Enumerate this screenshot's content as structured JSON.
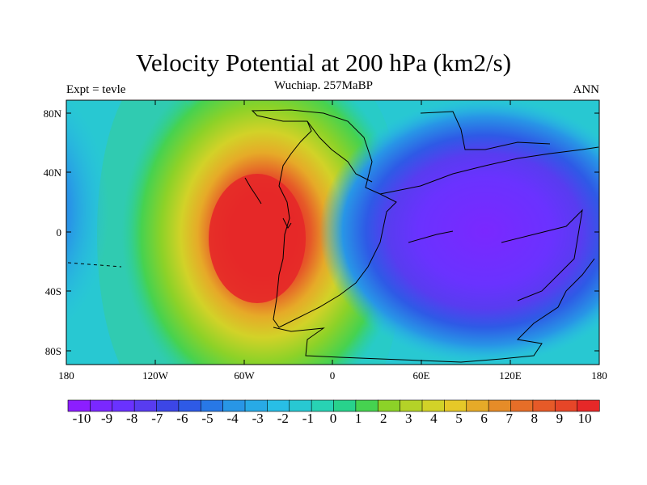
{
  "title": "Velocity Potential at 200 hPa (km2/s)",
  "subtitle": "Wuchiap. 257MaBP",
  "left_label": "Expt = tevle",
  "right_label": "ANN",
  "y_ticks": [
    "80N",
    "40N",
    "0",
    "40S",
    "80S"
  ],
  "x_ticks": [
    "180",
    "120W",
    "60W",
    "0",
    "60E",
    "120E",
    "180"
  ],
  "colorbar": {
    "labels": [
      "-10",
      "-9",
      "-8",
      "-7",
      "-6",
      "-5",
      "-4",
      "-3",
      "-2",
      "-1",
      "0",
      "1",
      "2",
      "3",
      "4",
      "5",
      "6",
      "7",
      "8",
      "9",
      "10"
    ],
    "colors": [
      "#8c1eff",
      "#7a28ff",
      "#6a32ff",
      "#583cf0",
      "#3c46e6",
      "#2e5ae6",
      "#2878e6",
      "#2896e6",
      "#28aae6",
      "#28bee6",
      "#28c8d2",
      "#28d2b4",
      "#28d28c",
      "#46d250",
      "#8cd228",
      "#b4d228",
      "#d2d228",
      "#e6c828",
      "#e6aa28",
      "#e68c28",
      "#e66e28",
      "#e65a28",
      "#e64628",
      "#e62828"
    ]
  },
  "map_field": {
    "max_center": {
      "lon": -55,
      "lat": -5,
      "value": 10
    },
    "min_center": {
      "lon": 110,
      "lat": 0,
      "value": -10
    }
  }
}
